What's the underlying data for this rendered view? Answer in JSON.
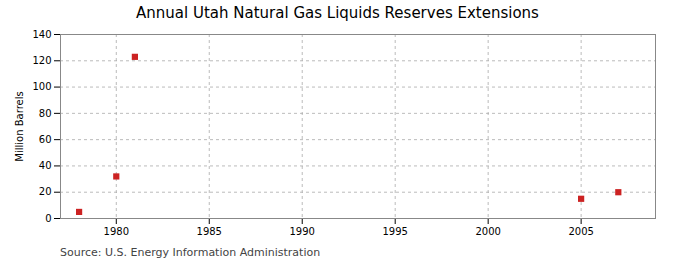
{
  "chart_data": {
    "type": "scatter",
    "title": "Annual Utah Natural Gas Liquids Reserves Extensions",
    "ylabel": "Million Barrels",
    "caption": "Source: U.S. Energy Information Administration",
    "x": [
      1978,
      1980,
      1981,
      2005,
      2007
    ],
    "values": [
      5,
      32,
      123,
      15,
      20
    ],
    "color": "#cc2222",
    "marker": "square",
    "xlim": [
      1977,
      2009
    ],
    "ylim": [
      0,
      140
    ],
    "xticks": [
      1980,
      1985,
      1990,
      1995,
      2000,
      2005
    ],
    "yticks": [
      0,
      20,
      40,
      60,
      80,
      100,
      120,
      140
    ],
    "grid": true
  }
}
